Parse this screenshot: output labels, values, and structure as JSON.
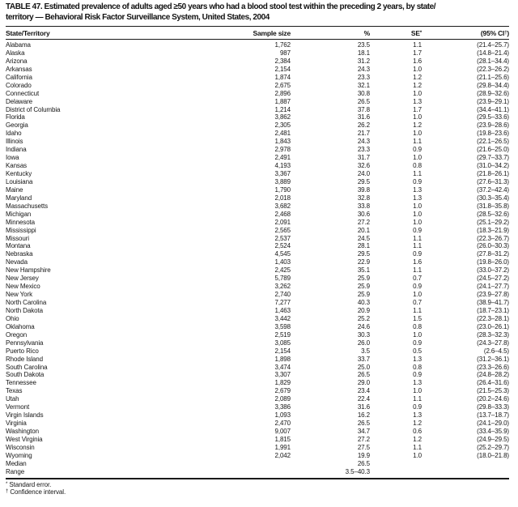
{
  "title": {
    "line1": "TABLE 47. Estimated prevalence of adults aged ≥50 years who had a blood stool test within the preceding 2 years, by state/",
    "line2": "territory — Behavioral Risk Factor Surveillance System, United States, 2004"
  },
  "table": {
    "columns": [
      {
        "label": "State/Territory",
        "sup": "",
        "suffix": ""
      },
      {
        "label": "Sample size",
        "sup": "",
        "suffix": ""
      },
      {
        "label": "%",
        "sup": "",
        "suffix": ""
      },
      {
        "label": "SE",
        "sup": "*",
        "suffix": ""
      },
      {
        "label": "(95% CI",
        "sup": "†",
        "suffix": ")"
      }
    ],
    "rows": [
      {
        "state": "Alabama",
        "n": "1,762",
        "pct": "23.5",
        "se": "1.1",
        "ci": "(21.4–25.7)"
      },
      {
        "state": "Alaska",
        "n": "987",
        "pct": "18.1",
        "se": "1.7",
        "ci": "(14.8–21.4)"
      },
      {
        "state": "Arizona",
        "n": "2,384",
        "pct": "31.2",
        "se": "1.6",
        "ci": "(28.1–34.4)"
      },
      {
        "state": "Arkansas",
        "n": "2,154",
        "pct": "24.3",
        "se": "1.0",
        "ci": "(22.3–26.2)"
      },
      {
        "state": "California",
        "n": "1,874",
        "pct": "23.3",
        "se": "1.2",
        "ci": "(21.1–25.6)"
      },
      {
        "state": "Colorado",
        "n": "2,675",
        "pct": "32.1",
        "se": "1.2",
        "ci": "(29.8–34.4)"
      },
      {
        "state": "Connecticut",
        "n": "2,896",
        "pct": "30.8",
        "se": "1.0",
        "ci": "(28.9–32.6)"
      },
      {
        "state": "Delaware",
        "n": "1,887",
        "pct": "26.5",
        "se": "1.3",
        "ci": "(23.9–29.1)"
      },
      {
        "state": "District of Columbia",
        "n": "1,214",
        "pct": "37.8",
        "se": "1.7",
        "ci": "(34.4–41.1)"
      },
      {
        "state": "Florida",
        "n": "3,862",
        "pct": "31.6",
        "se": "1.0",
        "ci": "(29.5–33.6)"
      },
      {
        "state": "Georgia",
        "n": "2,305",
        "pct": "26.2",
        "se": "1.2",
        "ci": "(23.9–28.6)"
      },
      {
        "state": "Idaho",
        "n": "2,481",
        "pct": "21.7",
        "se": "1.0",
        "ci": "(19.8–23.6)"
      },
      {
        "state": "Illinois",
        "n": "1,843",
        "pct": "24.3",
        "se": "1.1",
        "ci": "(22.1–26.5)"
      },
      {
        "state": "Indiana",
        "n": "2,978",
        "pct": "23.3",
        "se": "0.9",
        "ci": "(21.6–25.0)"
      },
      {
        "state": "Iowa",
        "n": "2,491",
        "pct": "31.7",
        "se": "1.0",
        "ci": "(29.7–33.7)"
      },
      {
        "state": "Kansas",
        "n": "4,193",
        "pct": "32.6",
        "se": "0.8",
        "ci": "(31.0–34.2)"
      },
      {
        "state": "Kentucky",
        "n": "3,367",
        "pct": "24.0",
        "se": "1.1",
        "ci": "(21.8–26.1)"
      },
      {
        "state": "Louisiana",
        "n": "3,889",
        "pct": "29.5",
        "se": "0.9",
        "ci": "(27.6–31.3)"
      },
      {
        "state": "Maine",
        "n": "1,790",
        "pct": "39.8",
        "se": "1.3",
        "ci": "(37.2–42.4)"
      },
      {
        "state": "Maryland",
        "n": "2,018",
        "pct": "32.8",
        "se": "1.3",
        "ci": "(30.3–35.4)"
      },
      {
        "state": "Massachusetts",
        "n": "3,682",
        "pct": "33.8",
        "se": "1.0",
        "ci": "(31.8–35.8)"
      },
      {
        "state": "Michigan",
        "n": "2,468",
        "pct": "30.6",
        "se": "1.0",
        "ci": "(28.5–32.6)"
      },
      {
        "state": "Minnesota",
        "n": "2,091",
        "pct": "27.2",
        "se": "1.0",
        "ci": "(25.1–29.2)"
      },
      {
        "state": "Mississippi",
        "n": "2,565",
        "pct": "20.1",
        "se": "0.9",
        "ci": "(18.3–21.9)"
      },
      {
        "state": "Missouri",
        "n": "2,537",
        "pct": "24.5",
        "se": "1.1",
        "ci": "(22.3–26.7)"
      },
      {
        "state": "Montana",
        "n": "2,524",
        "pct": "28.1",
        "se": "1.1",
        "ci": "(26.0–30.3)"
      },
      {
        "state": "Nebraska",
        "n": "4,545",
        "pct": "29.5",
        "se": "0.9",
        "ci": "(27.8–31.2)"
      },
      {
        "state": "Nevada",
        "n": "1,403",
        "pct": "22.9",
        "se": "1.6",
        "ci": "(19.8–26.0)"
      },
      {
        "state": "New Hampshire",
        "n": "2,425",
        "pct": "35.1",
        "se": "1.1",
        "ci": "(33.0–37.2)"
      },
      {
        "state": "New Jersey",
        "n": "5,789",
        "pct": "25.9",
        "se": "0.7",
        "ci": "(24.5–27.2)"
      },
      {
        "state": "New Mexico",
        "n": "3,262",
        "pct": "25.9",
        "se": "0.9",
        "ci": "(24.1–27.7)"
      },
      {
        "state": "New York",
        "n": "2,740",
        "pct": "25.9",
        "se": "1.0",
        "ci": "(23.9–27.8)"
      },
      {
        "state": "North Carolina",
        "n": "7,277",
        "pct": "40.3",
        "se": "0.7",
        "ci": "(38.9–41.7)"
      },
      {
        "state": "North Dakota",
        "n": "1,463",
        "pct": "20.9",
        "se": "1.1",
        "ci": "(18.7–23.1)"
      },
      {
        "state": "Ohio",
        "n": "3,442",
        "pct": "25.2",
        "se": "1.5",
        "ci": "(22.3–28.1)"
      },
      {
        "state": "Oklahoma",
        "n": "3,598",
        "pct": "24.6",
        "se": "0.8",
        "ci": "(23.0–26.1)"
      },
      {
        "state": "Oregon",
        "n": "2,519",
        "pct": "30.3",
        "se": "1.0",
        "ci": "(28.3–32.3)"
      },
      {
        "state": "Pennsylvania",
        "n": "3,085",
        "pct": "26.0",
        "se": "0.9",
        "ci": "(24.3–27.8)"
      },
      {
        "state": "Puerto Rico",
        "n": "2,154",
        "pct": "3.5",
        "se": "0.5",
        "ci": "(2.6–4.5)"
      },
      {
        "state": "Rhode Island",
        "n": "1,898",
        "pct": "33.7",
        "se": "1.3",
        "ci": "(31.2–36.1)"
      },
      {
        "state": "South Carolina",
        "n": "3,474",
        "pct": "25.0",
        "se": "0.8",
        "ci": "(23.3–26.6)"
      },
      {
        "state": "South Dakota",
        "n": "3,307",
        "pct": "26.5",
        "se": "0.9",
        "ci": "(24.8–28.2)"
      },
      {
        "state": "Tennessee",
        "n": "1,829",
        "pct": "29.0",
        "se": "1.3",
        "ci": "(26.4–31.6)"
      },
      {
        "state": "Texas",
        "n": "2,679",
        "pct": "23.4",
        "se": "1.0",
        "ci": "(21.5–25.3)"
      },
      {
        "state": "Utah",
        "n": "2,089",
        "pct": "22.4",
        "se": "1.1",
        "ci": "(20.2–24.6)"
      },
      {
        "state": "Vermont",
        "n": "3,386",
        "pct": "31.6",
        "se": "0.9",
        "ci": "(29.8–33.3)"
      },
      {
        "state": "Virgin Islands",
        "n": "1,093",
        "pct": "16.2",
        "se": "1.3",
        "ci": "(13.7–18.7)"
      },
      {
        "state": "Virginia",
        "n": "2,470",
        "pct": "26.5",
        "se": "1.2",
        "ci": "(24.1–29.0)"
      },
      {
        "state": "Washington",
        "n": "9,007",
        "pct": "34.7",
        "se": "0.6",
        "ci": "(33.4–35.9)"
      },
      {
        "state": "West Virginia",
        "n": "1,815",
        "pct": "27.2",
        "se": "1.2",
        "ci": "(24.9–29.5)"
      },
      {
        "state": "Wisconsin",
        "n": "1,991",
        "pct": "27.5",
        "se": "1.1",
        "ci": "(25.2–29.7)"
      },
      {
        "state": "Wyoming",
        "n": "2,042",
        "pct": "19.9",
        "se": "1.0",
        "ci": "(18.0–21.8)"
      },
      {
        "state": "Median",
        "n": "",
        "pct": "26.5",
        "se": "",
        "ci": ""
      },
      {
        "state": "Range",
        "n": "",
        "pct": "3.5–40.3",
        "se": "",
        "ci": ""
      }
    ]
  },
  "footnotes": [
    {
      "sym": "*",
      "text": " Standard error."
    },
    {
      "sym": "†",
      "text": " Confidence interval."
    }
  ]
}
